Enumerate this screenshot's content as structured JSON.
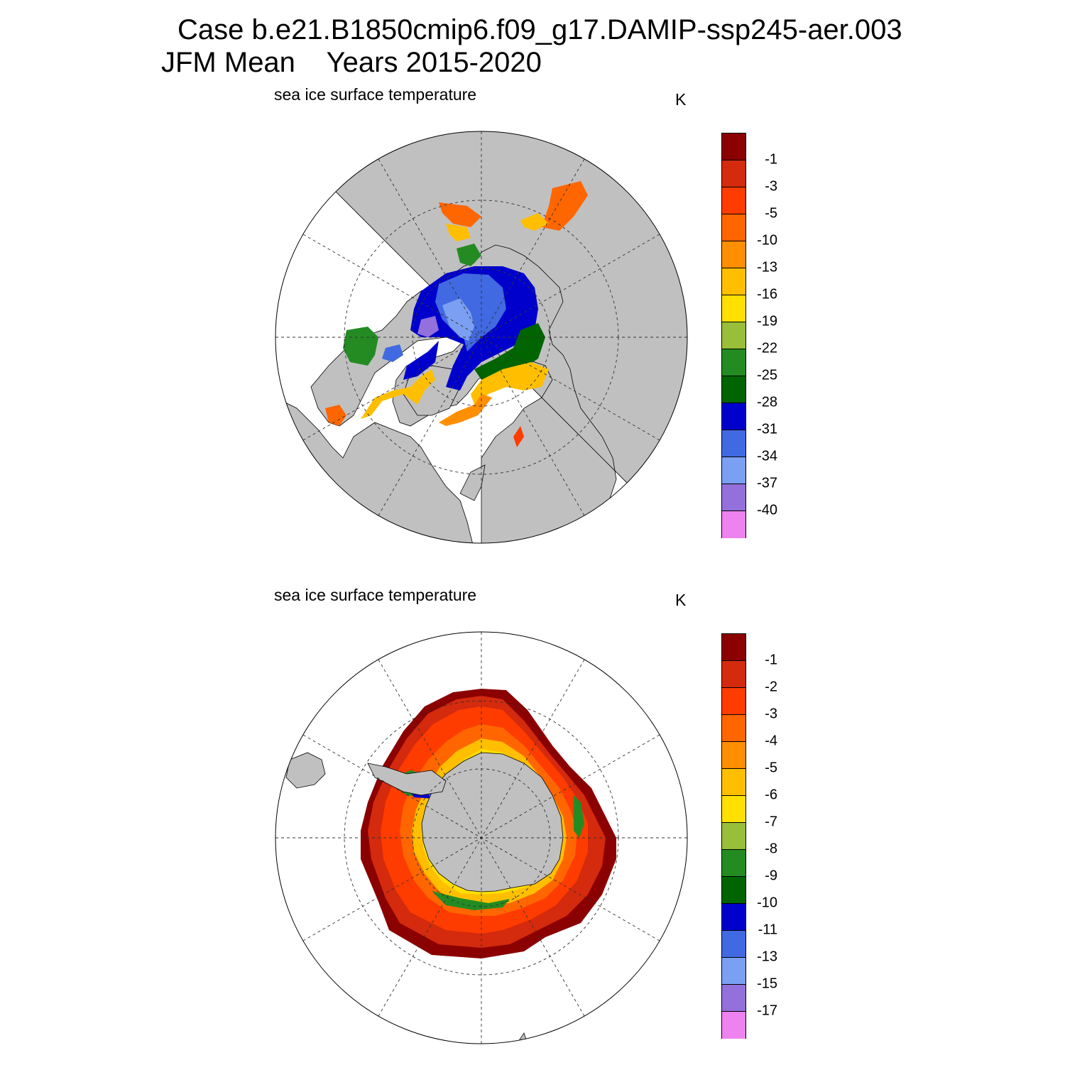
{
  "header": {
    "line1": "Case b.e21.B1850cmip6.f09_g17.DAMIP-ssp245-aer.003",
    "line2": "JFM Mean    Years 2015-2020"
  },
  "panels": [
    {
      "id": "arctic",
      "title": "sea ice surface temperature",
      "units": "K",
      "colorbar_labels": [
        "-1",
        "-3",
        "-5",
        "-10",
        "-13",
        "-16",
        "-19",
        "-22",
        "-25",
        "-28",
        "-31",
        "-34",
        "-37",
        "-40"
      ]
    },
    {
      "id": "antarctic",
      "title": "sea ice surface temperature",
      "units": "K",
      "colorbar_labels": [
        "-1",
        "-2",
        "-3",
        "-4",
        "-5",
        "-6",
        "-7",
        "-8",
        "-9",
        "-10",
        "-11",
        "-13",
        "-15",
        "-17"
      ]
    }
  ],
  "colors": {
    "colorbar_fills": [
      "#8b0000",
      "#d42a0d",
      "#ff3c00",
      "#ff6600",
      "#ff8e00",
      "#ffbf00",
      "#ffe000",
      "#99be39",
      "#238b22",
      "#006400",
      "#0000cd",
      "#4169e1",
      "#7b9ff2",
      "#9370db",
      "#ee82ee"
    ],
    "land": "#c0c0c0",
    "ocean": "#ffffff"
  }
}
